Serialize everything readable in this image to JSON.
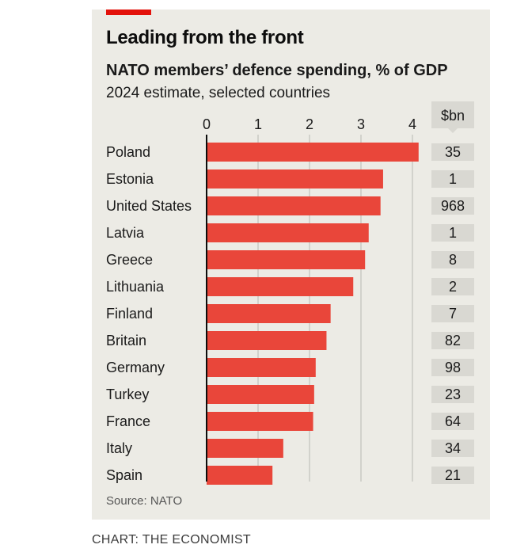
{
  "header": {
    "title": "Leading from the front",
    "subtitle": "NATO members’ defence spending, % of GDP",
    "subtitle2": "2024 estimate, selected countries",
    "source": "Source: NATO"
  },
  "credit": "CHART: THE ECONOMIST",
  "colors": {
    "bar": "#e9463a",
    "accent": "#e3120b",
    "panel": "#ecebe5",
    "box": "#d9d8d2"
  },
  "chart_data": {
    "type": "bar",
    "orientation": "horizontal",
    "title": "Leading from the front",
    "subtitle": "NATO members’ defence spending, % of GDP",
    "xlim": [
      0,
      4
    ],
    "xticks": [
      0,
      1,
      2,
      3,
      4
    ],
    "grid": true,
    "secondary_column_header": "$bn",
    "categories": [
      "Poland",
      "Estonia",
      "United States",
      "Latvia",
      "Greece",
      "Lithuania",
      "Finland",
      "Britain",
      "Germany",
      "Turkey",
      "France",
      "Italy",
      "Spain"
    ],
    "values": [
      4.12,
      3.43,
      3.38,
      3.15,
      3.08,
      2.85,
      2.41,
      2.33,
      2.12,
      2.09,
      2.07,
      1.49,
      1.28
    ],
    "spending_bn": [
      35,
      1,
      968,
      1,
      8,
      2,
      7,
      82,
      98,
      23,
      64,
      34,
      21
    ]
  }
}
